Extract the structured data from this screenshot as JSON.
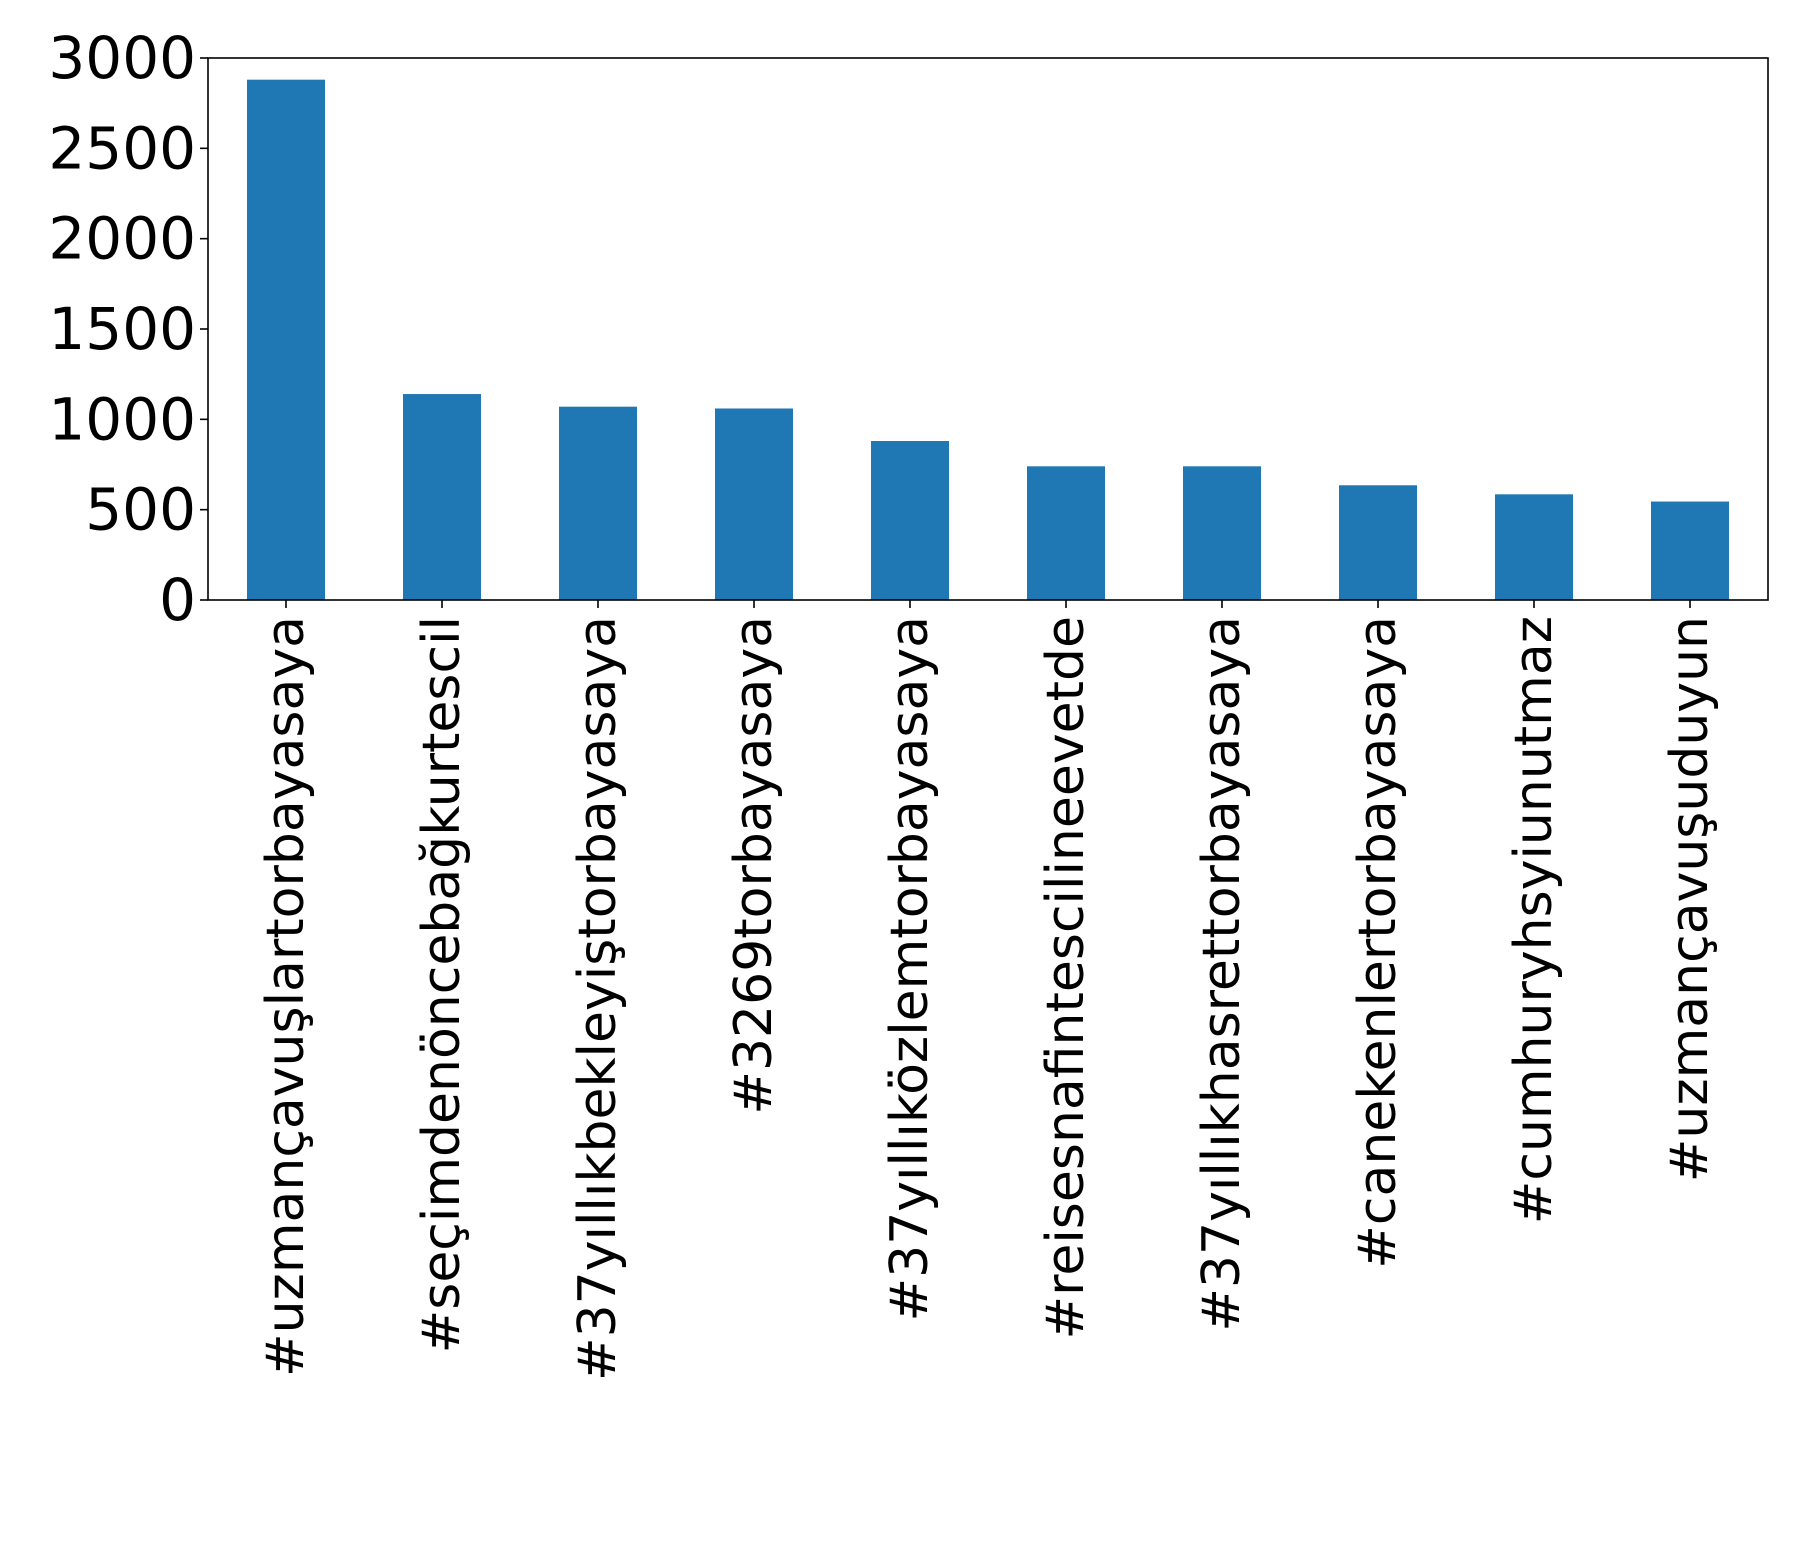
{
  "chart_data": {
    "type": "bar",
    "categories": [
      "#uzmançavuşlartorbayasaya",
      "#seçimdenöncebağkurtescil",
      "#37yıllıkbekleyiştorbayasaya",
      "#3269torbayasaya",
      "#37yıllıközlemtorbayasaya",
      "#reisesnafintescilineevetde",
      "#37yıllıkhasrettorbayasaya",
      "#canekenlertorbayasaya",
      "#cumhuryhsyiunutmaz",
      "#uzmançavuşuduyun"
    ],
    "values": [
      2880,
      1140,
      1070,
      1060,
      880,
      740,
      740,
      635,
      585,
      545
    ],
    "ylim": [
      0,
      3000
    ],
    "yticks": [
      0,
      500,
      1000,
      1500,
      2000,
      2500,
      3000
    ],
    "bar_color": "#1f77b4",
    "grid": false,
    "title": "",
    "xlabel": "",
    "ylabel": ""
  }
}
